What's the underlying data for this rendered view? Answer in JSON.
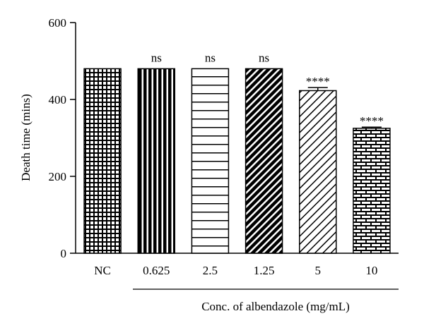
{
  "chart_data": {
    "type": "bar",
    "title": "",
    "xlabel": "",
    "group_label": "Conc. of albendazole (mg/mL)",
    "ylabel": "Death time (mins)",
    "ylim": [
      0,
      600
    ],
    "yticks": [
      0,
      200,
      400,
      600
    ],
    "categories": [
      "NC",
      "0.625",
      "2.5",
      "1.25",
      "5",
      "10"
    ],
    "values": [
      480,
      480,
      480,
      480,
      423,
      325
    ],
    "errors": [
      0,
      0,
      0,
      0,
      8,
      3
    ],
    "annotations": [
      "",
      "ns",
      "ns",
      "ns",
      "****",
      "****"
    ],
    "patterns": [
      "grid",
      "vertical",
      "horizontal",
      "diagonal-dense",
      "diagonal-light",
      "brick"
    ],
    "colors": {
      "ink": "#000000",
      "background": "#ffffff"
    }
  }
}
